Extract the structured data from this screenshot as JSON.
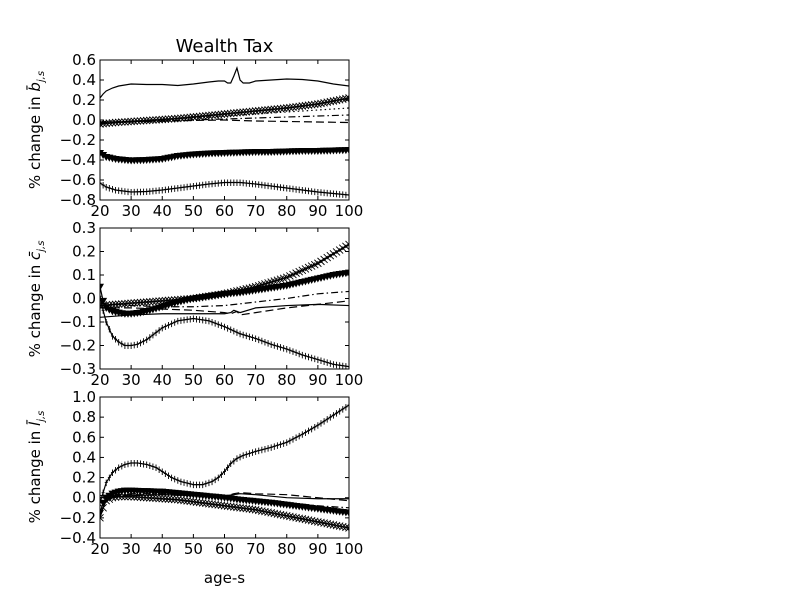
{
  "chart_data": [
    {
      "type": "line",
      "title": "Wealth Tax",
      "ylabel_prefix": "% change in ",
      "ylabel_symbol": "b̄",
      "ylabel_sub": "j,s",
      "xlabel": "",
      "xlim": [
        20,
        100
      ],
      "ylim": [
        -0.8,
        0.6
      ],
      "xticks": [
        "20",
        "30",
        "40",
        "50",
        "60",
        "70",
        "80",
        "90",
        "100"
      ],
      "yticks": [
        "0.6",
        "0.4",
        "0.2",
        "0.0",
        "−0.2",
        "−0.4",
        "−0.6",
        "−0.8"
      ],
      "ytick_values": [
        0.6,
        0.4,
        0.2,
        0.0,
        -0.2,
        -0.4,
        -0.6,
        -0.8
      ],
      "series": [
        {
          "style": "solid",
          "marker": "none",
          "x": [
            20,
            21,
            22,
            24,
            26,
            28,
            30,
            35,
            40,
            45,
            50,
            55,
            58,
            60,
            61,
            62,
            63,
            64,
            65,
            66,
            68,
            70,
            75,
            80,
            85,
            90,
            95,
            100
          ],
          "y": [
            0.22,
            0.26,
            0.29,
            0.32,
            0.34,
            0.35,
            0.36,
            0.355,
            0.355,
            0.345,
            0.36,
            0.38,
            0.39,
            0.39,
            0.37,
            0.37,
            0.44,
            0.52,
            0.4,
            0.37,
            0.37,
            0.39,
            0.4,
            0.41,
            0.405,
            0.39,
            0.36,
            0.34
          ]
        },
        {
          "style": "solid",
          "marker": "x",
          "x": [
            20,
            25,
            30,
            35,
            40,
            45,
            50,
            55,
            60,
            65,
            70,
            75,
            80,
            85,
            90,
            95,
            100
          ],
          "y": [
            -0.04,
            -0.025,
            -0.015,
            -0.005,
            0.005,
            0.015,
            0.03,
            0.045,
            0.06,
            0.075,
            0.09,
            0.105,
            0.12,
            0.14,
            0.16,
            0.19,
            0.22
          ]
        },
        {
          "style": "dotted",
          "marker": "none",
          "x": [
            20,
            30,
            40,
            50,
            60,
            70,
            80,
            90,
            100
          ],
          "y": [
            -0.02,
            -0.01,
            0.0,
            0.02,
            0.04,
            0.06,
            0.08,
            0.1,
            0.12
          ]
        },
        {
          "style": "dashdot",
          "marker": "none",
          "x": [
            20,
            30,
            40,
            50,
            60,
            70,
            80,
            90,
            100
          ],
          "y": [
            -0.03,
            -0.02,
            -0.01,
            0.0,
            0.01,
            0.02,
            0.03,
            0.04,
            0.05
          ]
        },
        {
          "style": "dashed",
          "marker": "none",
          "x": [
            20,
            30,
            40,
            50,
            60,
            70,
            80,
            90,
            100
          ],
          "y": [
            -0.02,
            -0.015,
            -0.01,
            -0.005,
            0.0,
            -0.01,
            -0.015,
            -0.02,
            -0.025
          ]
        },
        {
          "style": "solid",
          "marker": "triangle",
          "x": [
            20,
            22,
            25,
            28,
            30,
            35,
            40,
            45,
            50,
            55,
            60,
            65,
            70,
            75,
            80,
            85,
            90,
            95,
            100
          ],
          "y": [
            -0.33,
            -0.37,
            -0.39,
            -0.4,
            -0.405,
            -0.4,
            -0.39,
            -0.36,
            -0.345,
            -0.335,
            -0.33,
            -0.325,
            -0.32,
            -0.32,
            -0.315,
            -0.31,
            -0.31,
            -0.305,
            -0.3
          ]
        },
        {
          "style": "solid",
          "marker": "plus",
          "x": [
            20,
            22,
            25,
            30,
            35,
            40,
            45,
            50,
            55,
            60,
            65,
            70,
            75,
            80,
            85,
            90,
            95,
            100
          ],
          "y": [
            -0.63,
            -0.67,
            -0.7,
            -0.72,
            -0.715,
            -0.7,
            -0.68,
            -0.66,
            -0.64,
            -0.625,
            -0.625,
            -0.64,
            -0.66,
            -0.68,
            -0.7,
            -0.72,
            -0.735,
            -0.75
          ]
        }
      ]
    },
    {
      "type": "line",
      "title": "",
      "ylabel_prefix": "% change in ",
      "ylabel_symbol": "c̄",
      "ylabel_sub": "j,s",
      "xlabel": "",
      "xlim": [
        20,
        100
      ],
      "ylim": [
        -0.3,
        0.3
      ],
      "xticks": [
        "20",
        "30",
        "40",
        "50",
        "60",
        "70",
        "80",
        "90",
        "100"
      ],
      "yticks": [
        "0.3",
        "0.2",
        "0.1",
        "0.0",
        "−0.1",
        "−0.2",
        "−0.3"
      ],
      "ytick_values": [
        0.3,
        0.2,
        0.1,
        0.0,
        -0.1,
        -0.2,
        -0.3
      ],
      "series": [
        {
          "style": "solid",
          "marker": "x",
          "x": [
            20,
            25,
            30,
            35,
            40,
            45,
            50,
            55,
            60,
            65,
            70,
            75,
            80,
            85,
            90,
            95,
            100
          ],
          "y": [
            -0.03,
            -0.025,
            -0.02,
            -0.015,
            -0.01,
            -0.005,
            0.0,
            0.01,
            0.02,
            0.035,
            0.05,
            0.07,
            0.09,
            0.12,
            0.15,
            0.19,
            0.23
          ]
        },
        {
          "style": "solid",
          "marker": "triangle",
          "x": [
            20,
            21,
            22,
            24,
            26,
            28,
            30,
            33,
            36,
            40,
            45,
            50,
            55,
            60,
            65,
            70,
            75,
            80,
            85,
            90,
            95,
            100
          ],
          "y": [
            0.05,
            -0.01,
            -0.04,
            -0.055,
            -0.06,
            -0.065,
            -0.065,
            -0.06,
            -0.05,
            -0.035,
            -0.015,
            0.0,
            0.01,
            0.02,
            0.025,
            0.035,
            0.045,
            0.055,
            0.07,
            0.085,
            0.1,
            0.11
          ]
        },
        {
          "style": "dashdot",
          "marker": "none",
          "x": [
            20,
            30,
            40,
            50,
            60,
            70,
            80,
            90,
            100
          ],
          "y": [
            -0.02,
            -0.03,
            -0.035,
            -0.035,
            -0.03,
            -0.015,
            0.0,
            0.02,
            0.03
          ]
        },
        {
          "style": "dashed",
          "marker": "none",
          "x": [
            20,
            30,
            40,
            50,
            55,
            60,
            62,
            63,
            64,
            65,
            70,
            80,
            90,
            100
          ],
          "y": [
            -0.04,
            -0.04,
            -0.045,
            -0.05,
            -0.055,
            -0.06,
            -0.065,
            -0.06,
            -0.055,
            -0.07,
            -0.06,
            -0.04,
            -0.025,
            -0.01
          ]
        },
        {
          "style": "solid",
          "marker": "none",
          "x": [
            20,
            30,
            40,
            50,
            55,
            60,
            62,
            63,
            64,
            65,
            70,
            80,
            90,
            100
          ],
          "y": [
            -0.08,
            -0.07,
            -0.065,
            -0.065,
            -0.065,
            -0.065,
            -0.06,
            -0.05,
            -0.055,
            -0.06,
            -0.04,
            -0.03,
            -0.025,
            -0.03
          ]
        },
        {
          "style": "solid",
          "marker": "plus",
          "x": [
            20,
            21,
            22,
            24,
            26,
            28,
            30,
            32,
            35,
            38,
            40,
            45,
            50,
            55,
            60,
            65,
            70,
            75,
            80,
            85,
            90,
            95,
            100
          ],
          "y": [
            0.01,
            -0.05,
            -0.1,
            -0.16,
            -0.185,
            -0.2,
            -0.2,
            -0.195,
            -0.175,
            -0.145,
            -0.125,
            -0.095,
            -0.085,
            -0.095,
            -0.12,
            -0.15,
            -0.17,
            -0.195,
            -0.215,
            -0.24,
            -0.26,
            -0.28,
            -0.29
          ]
        }
      ]
    },
    {
      "type": "line",
      "title": "",
      "ylabel_prefix": "% change in ",
      "ylabel_symbol": "l̄",
      "ylabel_sub": "j,s",
      "xlabel": "age-s",
      "xlim": [
        20,
        100
      ],
      "ylim": [
        -0.4,
        1.0
      ],
      "xticks": [
        "20",
        "30",
        "40",
        "50",
        "60",
        "70",
        "80",
        "90",
        "100"
      ],
      "yticks": [
        "1.0",
        "0.8",
        "0.6",
        "0.4",
        "0.2",
        "0.0",
        "−0.2",
        "−0.4"
      ],
      "ytick_values": [
        1.0,
        0.8,
        0.6,
        0.4,
        0.2,
        0.0,
        -0.2,
        -0.4
      ],
      "series": [
        {
          "style": "solid",
          "marker": "plus",
          "x": [
            20,
            21,
            22,
            24,
            26,
            28,
            30,
            32,
            35,
            38,
            40,
            43,
            46,
            50,
            53,
            56,
            58,
            60,
            62,
            64,
            66,
            70,
            75,
            80,
            85,
            90,
            95,
            100
          ],
          "y": [
            -0.05,
            0.05,
            0.15,
            0.25,
            0.3,
            0.33,
            0.345,
            0.345,
            0.33,
            0.3,
            0.26,
            0.2,
            0.16,
            0.13,
            0.13,
            0.16,
            0.2,
            0.26,
            0.34,
            0.39,
            0.42,
            0.46,
            0.5,
            0.55,
            0.63,
            0.72,
            0.82,
            0.92
          ]
        },
        {
          "style": "solid",
          "marker": "none",
          "x": [
            20,
            25,
            30,
            40,
            50,
            60,
            63,
            65,
            70,
            80,
            90,
            100
          ],
          "y": [
            0.0,
            0.01,
            0.02,
            0.03,
            0.02,
            0.02,
            0.03,
            0.04,
            0.03,
            0.0,
            -0.01,
            -0.01
          ]
        },
        {
          "style": "dashed",
          "marker": "none",
          "x": [
            20,
            25,
            30,
            40,
            50,
            60,
            63,
            65,
            70,
            80,
            90,
            100
          ],
          "y": [
            0.0,
            0.02,
            0.03,
            0.03,
            0.02,
            0.01,
            0.04,
            0.05,
            0.04,
            0.03,
            0.0,
            -0.03
          ]
        },
        {
          "style": "dashdot",
          "marker": "none",
          "x": [
            20,
            30,
            40,
            50,
            60,
            70,
            80,
            90,
            100
          ],
          "y": [
            0.02,
            0.04,
            0.04,
            0.02,
            0.0,
            -0.02,
            -0.05,
            -0.08,
            -0.1
          ]
        },
        {
          "style": "solid",
          "marker": "triangle",
          "x": [
            20,
            21,
            22,
            24,
            26,
            28,
            30,
            35,
            40,
            45,
            50,
            55,
            60,
            65,
            70,
            75,
            80,
            85,
            90,
            95,
            100
          ],
          "y": [
            -0.15,
            -0.05,
            0.0,
            0.04,
            0.06,
            0.07,
            0.07,
            0.065,
            0.06,
            0.045,
            0.03,
            0.015,
            0.0,
            -0.02,
            -0.035,
            -0.05,
            -0.07,
            -0.09,
            -0.11,
            -0.13,
            -0.15
          ]
        },
        {
          "style": "solid",
          "marker": "x",
          "x": [
            20,
            21,
            22,
            24,
            26,
            28,
            30,
            35,
            40,
            45,
            50,
            55,
            60,
            65,
            70,
            75,
            80,
            85,
            90,
            95,
            100
          ],
          "y": [
            -0.2,
            -0.1,
            -0.03,
            0.0,
            0.01,
            0.01,
            0.01,
            0.0,
            -0.01,
            -0.02,
            -0.04,
            -0.06,
            -0.08,
            -0.1,
            -0.12,
            -0.15,
            -0.18,
            -0.21,
            -0.24,
            -0.27,
            -0.3
          ]
        }
      ]
    }
  ]
}
